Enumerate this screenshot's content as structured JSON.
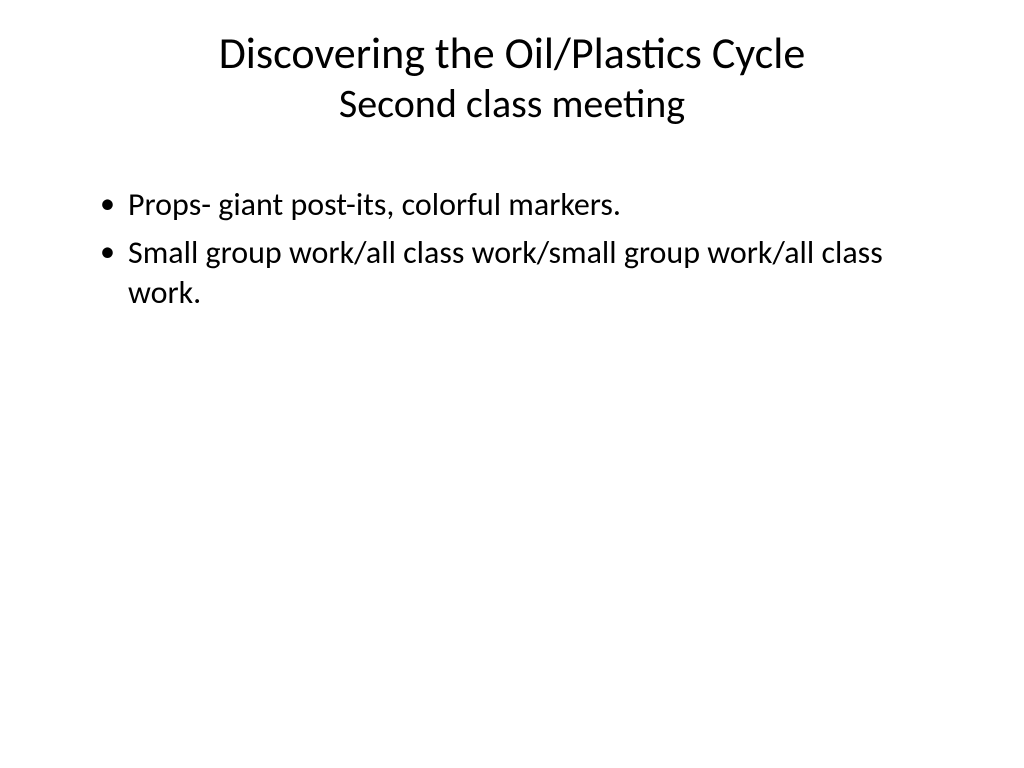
{
  "slide": {
    "title": "Discovering the Oil/Plastics Cycle",
    "subtitle": "Second class meeting",
    "bullets": [
      "Props- giant post-its, colorful markers.",
      "Small group work/all class work/small group work/all class work."
    ]
  },
  "styling": {
    "background_color": "#ffffff",
    "text_color": "#000000",
    "title_fontsize": 44,
    "subtitle_fontsize": 40,
    "body_fontsize": 32,
    "font_family": "Calibri"
  }
}
